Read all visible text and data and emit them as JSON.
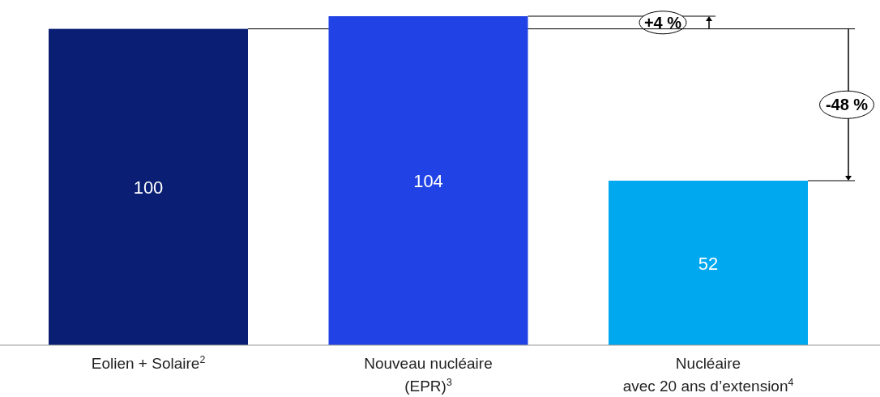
{
  "chart_data": {
    "type": "bar",
    "categories": [
      "Eolien + Solaire$^{2}$",
      "Nouveau nucléaire\n(EPR)$^{3}$",
      "Nucléaire\navec 20 ans d’extension$^{4}$"
    ],
    "values": [
      100,
      104,
      52
    ],
    "colors": [
      "#0a1f73",
      "#2143e6",
      "#00a8f0"
    ],
    "ref_lines": [
      {
        "axis": "y",
        "value": 100,
        "color": "#000000"
      }
    ],
    "relative": false,
    "data_labels": true,
    "annotations": [
      "+4 %",
      "-48 %"
    ]
  }
}
